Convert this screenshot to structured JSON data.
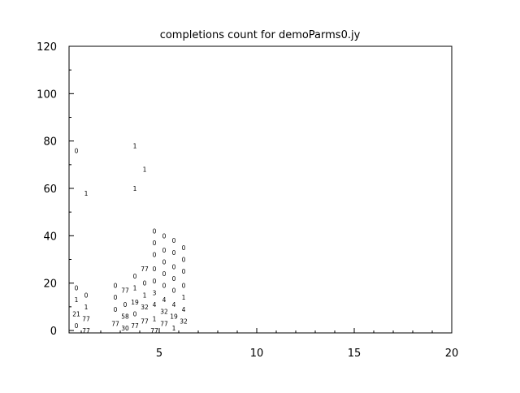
{
  "chart_data": {
    "type": "scatter",
    "marker": "text-label",
    "title": "completions count for demoParms0.jy",
    "xlabel": "",
    "ylabel": "",
    "xlim": [
      0.375,
      20
    ],
    "ylim": [
      0,
      120
    ],
    "xticks": [
      5,
      10,
      15,
      20
    ],
    "yticks": [
      0,
      20,
      40,
      60,
      80,
      100,
      120
    ],
    "grid": false,
    "points": [
      {
        "x": 1,
        "y": 76,
        "label": "0"
      },
      {
        "x": 1,
        "y": 58,
        "label": "1"
      },
      {
        "x": 1,
        "y": 18,
        "label": "0"
      },
      {
        "x": 1,
        "y": 15,
        "label": "0"
      },
      {
        "x": 1,
        "y": 13,
        "label": "1"
      },
      {
        "x": 1,
        "y": 10,
        "label": "1"
      },
      {
        "x": 1,
        "y": 7,
        "label": "21"
      },
      {
        "x": 1,
        "y": 5,
        "label": "77"
      },
      {
        "x": 1,
        "y": 2,
        "label": "0"
      },
      {
        "x": 1,
        "y": 0,
        "label": "77"
      },
      {
        "x": 3,
        "y": 19,
        "label": "0"
      },
      {
        "x": 3,
        "y": 17,
        "label": "77"
      },
      {
        "x": 3,
        "y": 14,
        "label": "0"
      },
      {
        "x": 3,
        "y": 11,
        "label": "0"
      },
      {
        "x": 3,
        "y": 9,
        "label": "0"
      },
      {
        "x": 3,
        "y": 6,
        "label": "58"
      },
      {
        "x": 3,
        "y": 3,
        "label": "77"
      },
      {
        "x": 3,
        "y": 1,
        "label": "30"
      },
      {
        "x": 4,
        "y": 78,
        "label": "1"
      },
      {
        "x": 4,
        "y": 68,
        "label": "1"
      },
      {
        "x": 4,
        "y": 60,
        "label": "1"
      },
      {
        "x": 4,
        "y": 26,
        "label": "77"
      },
      {
        "x": 4,
        "y": 23,
        "label": "0"
      },
      {
        "x": 4,
        "y": 20,
        "label": "0"
      },
      {
        "x": 4,
        "y": 18,
        "label": "1"
      },
      {
        "x": 4,
        "y": 15,
        "label": "1"
      },
      {
        "x": 4,
        "y": 12,
        "label": "19"
      },
      {
        "x": 4,
        "y": 10,
        "label": "32"
      },
      {
        "x": 4,
        "y": 7,
        "label": "0"
      },
      {
        "x": 4,
        "y": 4,
        "label": "77"
      },
      {
        "x": 4,
        "y": 2,
        "label": "77"
      },
      {
        "x": 5,
        "y": 42,
        "label": "0"
      },
      {
        "x": 5,
        "y": 40,
        "label": "0"
      },
      {
        "x": 5,
        "y": 37,
        "label": "0"
      },
      {
        "x": 5,
        "y": 34,
        "label": "0"
      },
      {
        "x": 5,
        "y": 32,
        "label": "0"
      },
      {
        "x": 5,
        "y": 29,
        "label": "0"
      },
      {
        "x": 5,
        "y": 26,
        "label": "0"
      },
      {
        "x": 5,
        "y": 24,
        "label": "0"
      },
      {
        "x": 5,
        "y": 21,
        "label": "0"
      },
      {
        "x": 5,
        "y": 19,
        "label": "0"
      },
      {
        "x": 5,
        "y": 16,
        "label": "3"
      },
      {
        "x": 5,
        "y": 13,
        "label": "4"
      },
      {
        "x": 5,
        "y": 11,
        "label": "4"
      },
      {
        "x": 5,
        "y": 8,
        "label": "32"
      },
      {
        "x": 5,
        "y": 5,
        "label": "1"
      },
      {
        "x": 5,
        "y": 3,
        "label": "77"
      },
      {
        "x": 5,
        "y": 0,
        "label": "77"
      },
      {
        "x": 6,
        "y": 38,
        "label": "0"
      },
      {
        "x": 6,
        "y": 35,
        "label": "0"
      },
      {
        "x": 6,
        "y": 33,
        "label": "0"
      },
      {
        "x": 6,
        "y": 30,
        "label": "0"
      },
      {
        "x": 6,
        "y": 27,
        "label": "0"
      },
      {
        "x": 6,
        "y": 25,
        "label": "0"
      },
      {
        "x": 6,
        "y": 22,
        "label": "0"
      },
      {
        "x": 6,
        "y": 19,
        "label": "0"
      },
      {
        "x": 6,
        "y": 17,
        "label": "0"
      },
      {
        "x": 6,
        "y": 14,
        "label": "1"
      },
      {
        "x": 6,
        "y": 11,
        "label": "4"
      },
      {
        "x": 6,
        "y": 9,
        "label": "4"
      },
      {
        "x": 6,
        "y": 6,
        "label": "19"
      },
      {
        "x": 6,
        "y": 4,
        "label": "32"
      },
      {
        "x": 6,
        "y": 1,
        "label": "1"
      }
    ]
  }
}
